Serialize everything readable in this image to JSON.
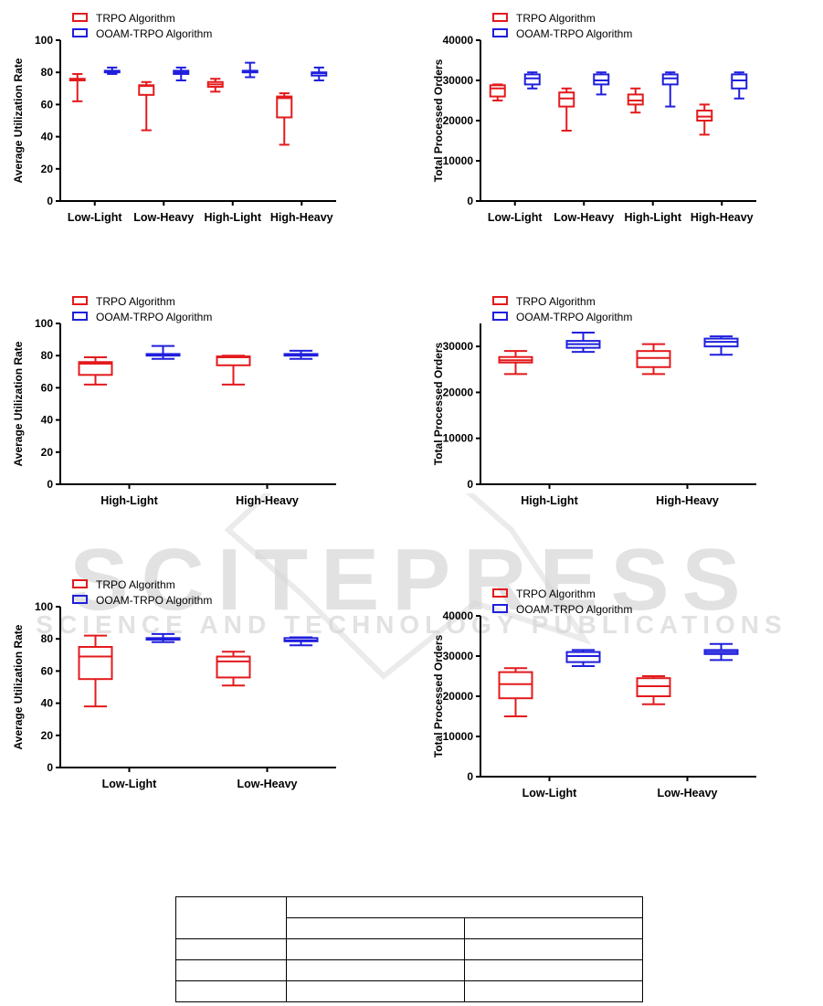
{
  "legend": {
    "trpo": "TRPO Algorithm",
    "ooam": "OOAM-TRPO Algorithm"
  },
  "colors": {
    "trpo": "#e31a1c",
    "ooam": "#1f1fdd",
    "axis": "#000000",
    "watermark": "#d6d6d6"
  },
  "watermark": {
    "title": "SCITEPRESS",
    "subtitle": "SCIENCE AND TECHNOLOGY PUBLICATIONS"
  },
  "chart_data": [
    {
      "type": "box",
      "ylabel": "Average Utilization Rate",
      "ylim": [
        0,
        100
      ],
      "yticks": [
        "0",
        "20",
        "40",
        "60",
        "80",
        "100"
      ],
      "categories": [
        "Low-Light",
        "Low-Heavy",
        "High-Light",
        "High-Heavy"
      ],
      "series": [
        {
          "name": "TRPO Algorithm",
          "boxes": [
            [
              62,
              75,
              75.5,
              76,
              79
            ],
            [
              44,
              66,
              71.5,
              72,
              74
            ],
            [
              68,
              71,
              72.5,
              74,
              76
            ],
            [
              35,
              52,
              64,
              65,
              67
            ]
          ]
        },
        {
          "name": "OOAM-TRPO Algorithm",
          "boxes": [
            [
              79,
              80,
              80.5,
              81,
              83
            ],
            [
              75,
              79,
              80,
              81,
              83
            ],
            [
              77,
              80,
              80.5,
              81,
              86
            ],
            [
              75,
              78,
              79.5,
              80,
              83
            ]
          ]
        }
      ]
    },
    {
      "type": "box",
      "ylabel": "Total Processed Orders",
      "ylim": [
        0,
        40000
      ],
      "yticks": [
        "0",
        "10000",
        "20000",
        "30000",
        "40000"
      ],
      "categories": [
        "Low-Light",
        "Low-Heavy",
        "High-Light",
        "High-Heavy"
      ],
      "series": [
        {
          "name": "TRPO Algorithm",
          "boxes": [
            [
              25000,
              26000,
              28000,
              28800,
              29000
            ],
            [
              17500,
              23500,
              25500,
              27000,
              28000
            ],
            [
              22000,
              24000,
              25000,
              26500,
              28000
            ],
            [
              16500,
              20000,
              21000,
              22500,
              24000
            ]
          ]
        },
        {
          "name": "OOAM-TRPO Algorithm",
          "boxes": [
            [
              28000,
              29000,
              30500,
              31500,
              32000
            ],
            [
              26500,
              29000,
              30000,
              31500,
              32000
            ],
            [
              23500,
              29000,
              30500,
              31500,
              32000
            ],
            [
              25500,
              28000,
              30000,
              31500,
              32000
            ]
          ]
        }
      ]
    },
    {
      "type": "box",
      "ylabel": "Average Utilization Rate",
      "ylim": [
        0,
        100
      ],
      "yticks": [
        "0",
        "20",
        "40",
        "60",
        "80",
        "100"
      ],
      "categories": [
        "High-Light",
        "High-Heavy"
      ],
      "series": [
        {
          "name": "TRPO Algorithm",
          "boxes": [
            [
              62,
              68,
              75,
              76,
              79
            ],
            [
              62,
              74,
              79,
              79.5,
              80
            ]
          ]
        },
        {
          "name": "OOAM-TRPO Algorithm",
          "boxes": [
            [
              78,
              80,
              80.5,
              81,
              86
            ],
            [
              78,
              80,
              80.5,
              81,
              83
            ]
          ]
        }
      ]
    },
    {
      "type": "box",
      "ylabel": "Total Processed Orders",
      "ylim": [
        0,
        35000
      ],
      "yticks": [
        "0",
        "10000",
        "20000",
        "30000"
      ],
      "categories": [
        "High-Light",
        "High-Heavy"
      ],
      "series": [
        {
          "name": "TRPO Algorithm",
          "boxes": [
            [
              24000,
              26500,
              27000,
              27700,
              29000
            ],
            [
              24000,
              25500,
              27500,
              29000,
              30500
            ]
          ]
        },
        {
          "name": "OOAM-TRPO Algorithm",
          "boxes": [
            [
              28800,
              29700,
              30500,
              31200,
              33000
            ],
            [
              28200,
              30000,
              31000,
              31700,
              32200
            ]
          ]
        }
      ]
    },
    {
      "type": "box",
      "ylabel": "Average Utilization Rate",
      "ylim": [
        0,
        100
      ],
      "yticks": [
        "0",
        "20",
        "40",
        "60",
        "80",
        "100"
      ],
      "categories": [
        "Low-Light",
        "Low-Heavy"
      ],
      "series": [
        {
          "name": "TRPO Algorithm",
          "boxes": [
            [
              38,
              55,
              69,
              75,
              82
            ],
            [
              51,
              56,
              66,
              69,
              72
            ]
          ]
        },
        {
          "name": "OOAM-TRPO Algorithm",
          "boxes": [
            [
              78,
              79.5,
              80,
              80.5,
              83
            ],
            [
              76,
              78.5,
              79,
              80.5,
              81
            ]
          ]
        }
      ]
    },
    {
      "type": "box",
      "ylabel": "Total Processed Orders",
      "ylim": [
        0,
        40000
      ],
      "yticks": [
        "0",
        "10000",
        "20000",
        "30000",
        "40000"
      ],
      "categories": [
        "Low-Light",
        "Low-Heavy"
      ],
      "series": [
        {
          "name": "TRPO Algorithm",
          "boxes": [
            [
              15000,
              19500,
              23000,
              26000,
              27000
            ],
            [
              18000,
              20000,
              22500,
              24500,
              25000
            ]
          ]
        },
        {
          "name": "OOAM-TRPO Algorithm",
          "boxes": [
            [
              27500,
              28500,
              30000,
              31000,
              31500
            ],
            [
              29000,
              30500,
              31000,
              31500,
              33000
            ]
          ]
        }
      ]
    }
  ]
}
